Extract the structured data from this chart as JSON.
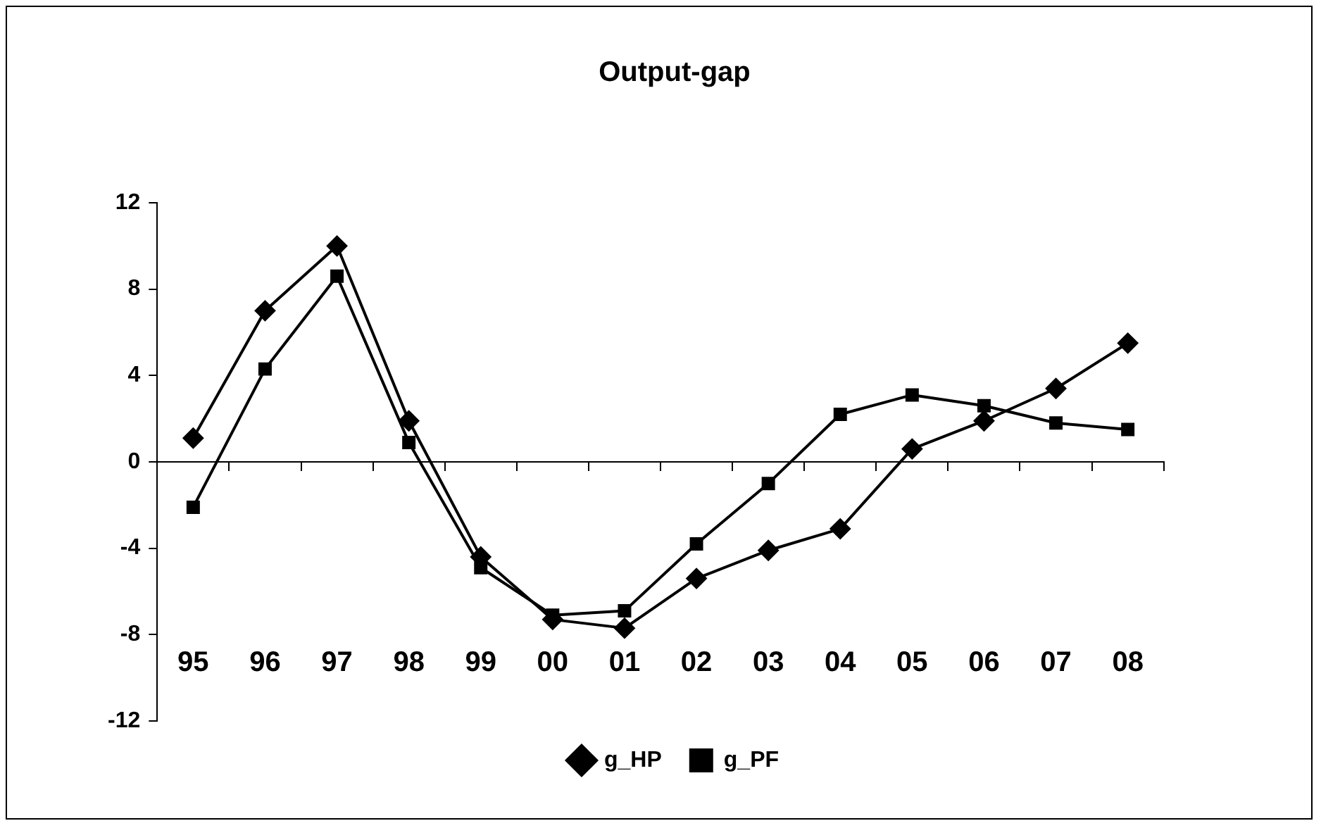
{
  "chart_data": {
    "type": "line",
    "title": "Output-gap",
    "categories": [
      "95",
      "96",
      "97",
      "98",
      "99",
      "00",
      "01",
      "02",
      "03",
      "04",
      "05",
      "06",
      "07",
      "08"
    ],
    "series": [
      {
        "name": "g_HP",
        "color": "#000000",
        "marker": "diamond",
        "values": [
          1.1,
          7.0,
          10.0,
          1.9,
          -4.4,
          -7.3,
          -7.7,
          -5.4,
          -4.1,
          -3.1,
          0.6,
          1.9,
          3.4,
          5.5
        ]
      },
      {
        "name": "g_PF",
        "color": "#000000",
        "marker": "square",
        "values": [
          -2.1,
          4.3,
          8.6,
          0.9,
          -4.9,
          -7.1,
          -6.9,
          -3.8,
          -1.0,
          2.2,
          3.1,
          2.6,
          1.8,
          1.5
        ]
      }
    ],
    "ylim": [
      -12,
      12
    ],
    "yticks": [
      -12,
      -8,
      -4,
      0,
      4,
      8,
      12
    ],
    "legend": "bottom",
    "line_style": "solid"
  }
}
